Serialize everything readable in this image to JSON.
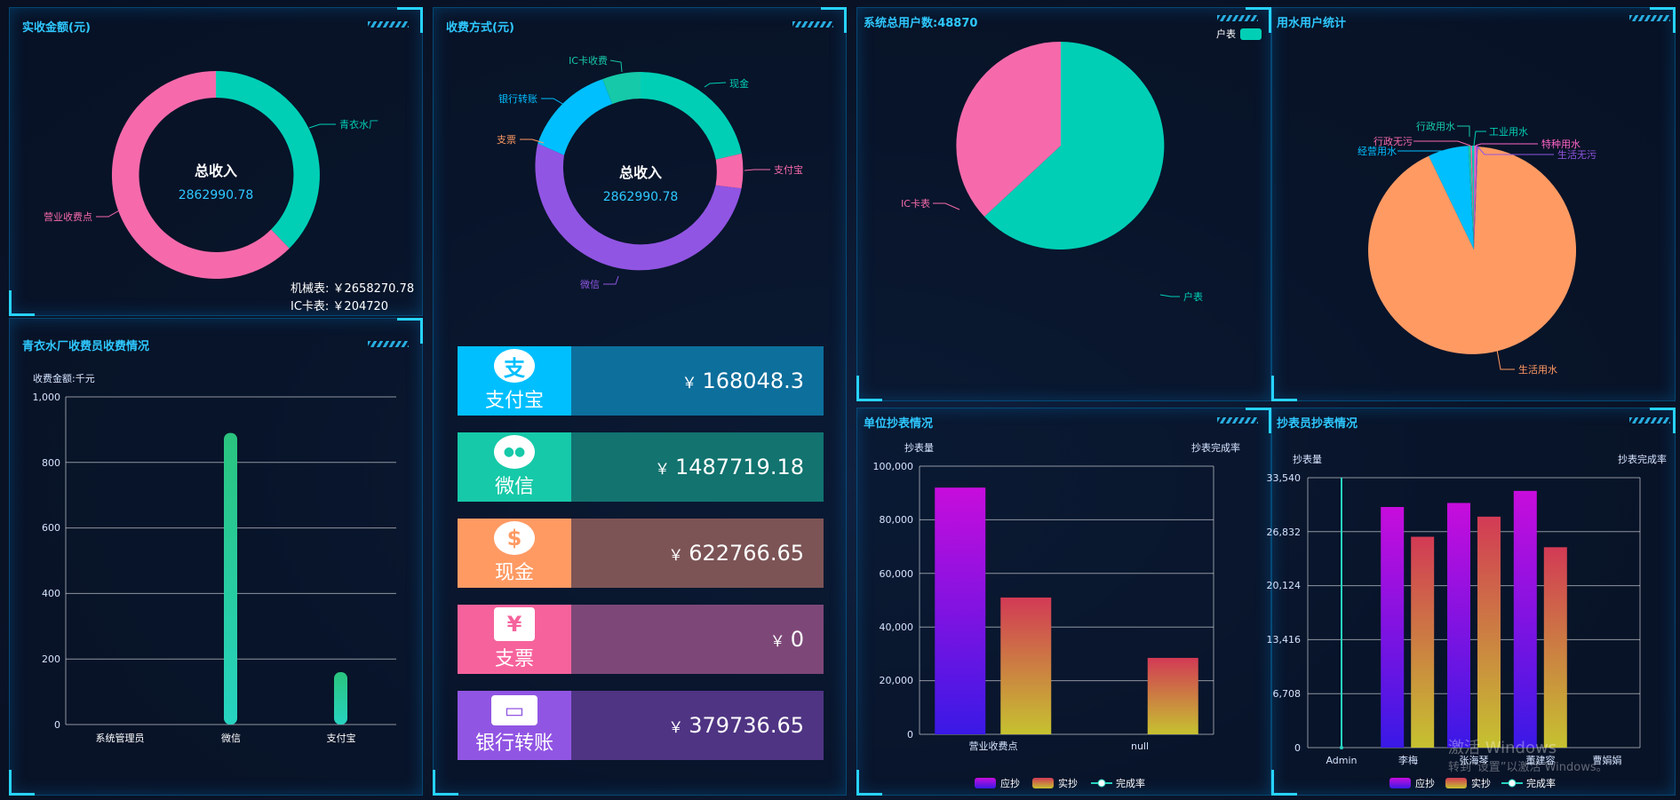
{
  "panels": {
    "revenue": {
      "title": "实收金额(元)"
    },
    "payment": {
      "title": "收费方式(元)"
    },
    "users": {
      "title": "系统总用户数:48870"
    },
    "water": {
      "title": "用水用户统计"
    },
    "cashier": {
      "title": "青衣水厂收费员收费情况"
    },
    "unit_read": {
      "title": "单位抄表情况"
    },
    "reader": {
      "title": "抄表员抄表情况"
    }
  },
  "revenue_donut": {
    "center_title": "总收入",
    "center_value": "2862990.78",
    "labels": [
      "青衣水厂",
      "营业收费点"
    ],
    "notes": [
      "机械表: ￥2658270.78",
      "IC卡表: ￥204720"
    ],
    "colors": [
      "#00cfb6",
      "#f66aab"
    ]
  },
  "payment_donut": {
    "center_title": "总收入",
    "center_value": "2862990.78",
    "labels": [
      "IC卡收费",
      "现金",
      "银行转账",
      "支票",
      "支付宝",
      "微信"
    ]
  },
  "payment_cards": [
    {
      "label": "支付宝",
      "currency": "￥",
      "amount": "168048.3",
      "icon": "alipay-icon",
      "glyph": "支",
      "icon_bg": "#00bfff",
      "amt_bg": "#0d6f9c"
    },
    {
      "label": "微信",
      "currency": "￥",
      "amount": "1487719.18",
      "icon": "wechat-icon",
      "glyph": "●●",
      "icon_bg": "#16c9a8",
      "amt_bg": "#12736f"
    },
    {
      "label": "现金",
      "currency": "￥",
      "amount": "622766.65",
      "icon": "cash-icon",
      "glyph": "$",
      "icon_bg": "#ff9a63",
      "amt_bg": "#7c5456"
    },
    {
      "label": "支票",
      "currency": "￥",
      "amount": "0",
      "icon": "cheque-icon",
      "glyph": "¥",
      "icon_bg": "#f6629c",
      "amt_bg": "#7d4878"
    },
    {
      "label": "银行转账",
      "currency": "￥",
      "amount": "379736.65",
      "icon": "card-icon",
      "glyph": "▭",
      "icon_bg": "#9155e3",
      "amt_bg": "#4f3483"
    }
  ],
  "users_pie": {
    "legend": "户表",
    "labels": [
      "IC卡表",
      "户表"
    ]
  },
  "water_pie": {
    "labels": [
      "行政用水",
      "工业用水",
      "行政无污",
      "特种用水",
      "经营用水",
      "生活无污",
      "生活用水"
    ]
  },
  "cashier_chart": {
    "ylabel": "收费金额:千元",
    "categories": [
      "系统管理员",
      "微信",
      "支付宝"
    ],
    "values": [
      0,
      890,
      160
    ],
    "yticks": [
      "0",
      "200",
      "400",
      "600",
      "800",
      "1,000"
    ]
  },
  "unit_chart": {
    "ylabel_left": "抄表量",
    "ylabel_right": "抄表完成率",
    "categories": [
      "营业收费点",
      "null"
    ],
    "yticks": [
      "0",
      "20,000",
      "40,000",
      "60,000",
      "80,000",
      "100,000"
    ],
    "legend": [
      "应抄",
      "实抄",
      "完成率"
    ]
  },
  "reader_chart": {
    "ylabel_left": "抄表量",
    "ylabel_right": "抄表完成率",
    "categories": [
      "Admin",
      "李梅",
      "张海琴",
      "董建容",
      "曹娟娟"
    ],
    "yticks": [
      "0",
      "6,708",
      "13,416",
      "20,124",
      "26,832",
      "33,540"
    ],
    "legend": [
      "应抄",
      "实抄",
      "完成率"
    ]
  },
  "chart_data": [
    {
      "type": "pie",
      "title": "实收金额(元)",
      "categories": [
        "青衣水厂",
        "营业收费点"
      ],
      "values": [
        36,
        64
      ]
    },
    {
      "type": "pie",
      "title": "收费方式(元)",
      "categories": [
        "现金",
        "支付宝",
        "微信",
        "支票",
        "银行转账",
        "IC卡收费"
      ],
      "values": [
        622766.65,
        168048.3,
        1487719.18,
        0,
        379736.65,
        204720
      ]
    },
    {
      "type": "pie",
      "title": "系统总用户数:48870",
      "categories": [
        "户表",
        "IC卡表"
      ],
      "values": [
        64,
        36
      ]
    },
    {
      "type": "pie",
      "title": "用水用户统计",
      "categories": [
        "生活用水",
        "经营用水",
        "行政用水",
        "行政无污",
        "工业用水",
        "特种用水",
        "生活无污"
      ],
      "values": [
        90.5,
        7.5,
        0.5,
        0.3,
        0.4,
        0.4,
        0.4
      ]
    },
    {
      "type": "bar",
      "title": "青衣水厂收费员收费情况",
      "ylabel": "收费金额:千元",
      "categories": [
        "系统管理员",
        "微信",
        "支付宝"
      ],
      "values": [
        0,
        890,
        160
      ],
      "ylim": [
        0,
        1000
      ]
    },
    {
      "type": "bar",
      "title": "单位抄表情况",
      "ylabel": "抄表量",
      "categories": [
        "营业收费点",
        "null"
      ],
      "series": [
        {
          "name": "应抄",
          "values": [
            92000,
            0
          ]
        },
        {
          "name": "实抄",
          "values": [
            51000,
            28500
          ]
        }
      ],
      "ylim": [
        0,
        100000
      ]
    },
    {
      "type": "bar",
      "title": "抄表员抄表情况",
      "ylabel": "抄表量",
      "categories": [
        "Admin",
        "李梅",
        "张海琴",
        "董建容",
        "曹娟娟"
      ],
      "series": [
        {
          "name": "应抄",
          "values": [
            0,
            29900,
            30400,
            31900,
            0
          ]
        },
        {
          "name": "实抄",
          "values": [
            0,
            26200,
            28700,
            24900,
            0
          ]
        }
      ],
      "ylim": [
        0,
        33540
      ]
    }
  ],
  "watermark": [
    "激活 Windows",
    "转到“设置”以激活 Windows。"
  ]
}
